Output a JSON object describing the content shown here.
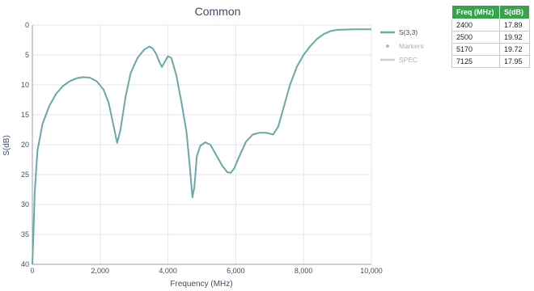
{
  "chart_data": {
    "type": "line",
    "title": "Common",
    "xlabel": "Frequency (MHz)",
    "ylabel": "S(dB)",
    "xlim": [
      0,
      10000
    ],
    "ylim": [
      40,
      0
    ],
    "y_axis_reversed": true,
    "grid": true,
    "legend_position": "right",
    "x_ticks": [
      "0",
      "2,000",
      "4,000",
      "6,000",
      "8,000",
      "10,000"
    ],
    "x_tick_values": [
      0,
      2000,
      4000,
      6000,
      8000,
      10000
    ],
    "y_ticks": [
      "0",
      "5",
      "10",
      "15",
      "20",
      "25",
      "30",
      "35",
      "40"
    ],
    "y_tick_values": [
      0,
      5,
      10,
      15,
      20,
      25,
      30,
      35,
      40
    ],
    "legend": [
      {
        "label": "S(3,3)",
        "color": "#6aa8a8",
        "kind": "line"
      },
      {
        "label": "Markers",
        "color": "#b0b8c0",
        "kind": "dot"
      },
      {
        "label": "SPEC",
        "color": "#c8ced4",
        "kind": "line"
      }
    ],
    "series": [
      {
        "name": "S(3,3)",
        "color": "#6aa8a8",
        "points": [
          [
            0,
            40
          ],
          [
            30,
            35
          ],
          [
            70,
            28
          ],
          [
            150,
            21
          ],
          [
            300,
            16.5
          ],
          [
            500,
            13.5
          ],
          [
            700,
            11.5
          ],
          [
            900,
            10.2
          ],
          [
            1100,
            9.4
          ],
          [
            1300,
            8.9
          ],
          [
            1500,
            8.7
          ],
          [
            1700,
            8.8
          ],
          [
            1900,
            9.4
          ],
          [
            2100,
            10.8
          ],
          [
            2250,
            13
          ],
          [
            2400,
            17
          ],
          [
            2500,
            19.7
          ],
          [
            2600,
            17.5
          ],
          [
            2750,
            12
          ],
          [
            2900,
            8
          ],
          [
            3100,
            5.5
          ],
          [
            3300,
            4.1
          ],
          [
            3450,
            3.6
          ],
          [
            3550,
            3.9
          ],
          [
            3650,
            4.8
          ],
          [
            3750,
            6.2
          ],
          [
            3820,
            7
          ],
          [
            3900,
            6.2
          ],
          [
            4000,
            5.2
          ],
          [
            4100,
            5.5
          ],
          [
            4250,
            8.5
          ],
          [
            4400,
            13
          ],
          [
            4550,
            18
          ],
          [
            4650,
            24
          ],
          [
            4720,
            28.8
          ],
          [
            4780,
            27
          ],
          [
            4850,
            22
          ],
          [
            4950,
            20.2
          ],
          [
            5100,
            19.6
          ],
          [
            5250,
            20
          ],
          [
            5400,
            21.5
          ],
          [
            5600,
            23.5
          ],
          [
            5750,
            24.6
          ],
          [
            5850,
            24.7
          ],
          [
            5950,
            24
          ],
          [
            6100,
            22
          ],
          [
            6300,
            19.5
          ],
          [
            6500,
            18.3
          ],
          [
            6700,
            18
          ],
          [
            6900,
            18
          ],
          [
            7100,
            18.3
          ],
          [
            7250,
            17
          ],
          [
            7400,
            14
          ],
          [
            7600,
            10
          ],
          [
            7800,
            7
          ],
          [
            8000,
            5
          ],
          [
            8200,
            3.5
          ],
          [
            8400,
            2.3
          ],
          [
            8600,
            1.5
          ],
          [
            8800,
            1
          ],
          [
            9000,
            0.8
          ],
          [
            9500,
            0.7
          ],
          [
            10000,
            0.7
          ]
        ]
      }
    ]
  },
  "marker_table": {
    "headers": [
      "Freq (MHz)",
      "S(dB)"
    ],
    "rows": [
      [
        "2400",
        "17.89"
      ],
      [
        "2500",
        "19.92"
      ],
      [
        "5170",
        "19.72"
      ],
      [
        "7125",
        "17.95"
      ]
    ]
  }
}
